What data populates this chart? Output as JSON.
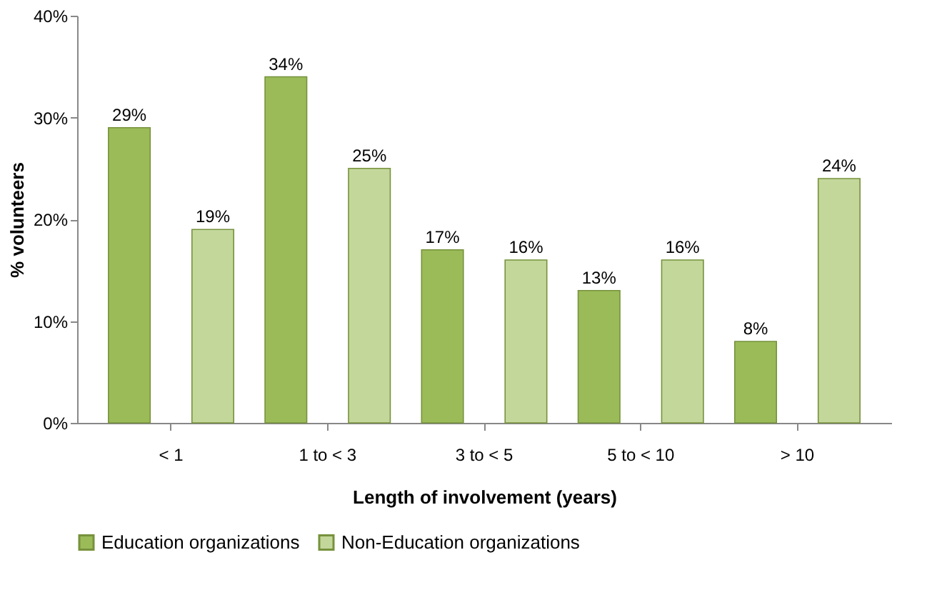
{
  "chart_data": {
    "type": "bar",
    "xlabel": "Length of involvement (years)",
    "ylabel": "% volunteers",
    "categories": [
      "< 1",
      "1 to < 3",
      "3 to < 5",
      "5 to < 10",
      "> 10"
    ],
    "series": [
      {
        "name": "Education organizations",
        "color": "#9bbb59",
        "values": [
          29,
          34,
          17,
          13,
          8
        ],
        "value_labels": [
          "29%",
          "34%",
          "17%",
          "13%",
          "8%"
        ]
      },
      {
        "name": "Non-Education organizations",
        "color": "#c4d79b",
        "values": [
          19,
          25,
          16,
          16,
          24
        ],
        "value_labels": [
          "19%",
          "25%",
          "16%",
          "16%",
          "24%"
        ]
      }
    ],
    "ylim": [
      0,
      40
    ],
    "yticks": [
      {
        "value": 0,
        "label": "0%"
      },
      {
        "value": 10,
        "label": "10%"
      },
      {
        "value": 20,
        "label": "20%"
      },
      {
        "value": 30,
        "label": "30%"
      },
      {
        "value": 40,
        "label": "40%"
      }
    ],
    "grid": false,
    "legend": "bottom"
  }
}
